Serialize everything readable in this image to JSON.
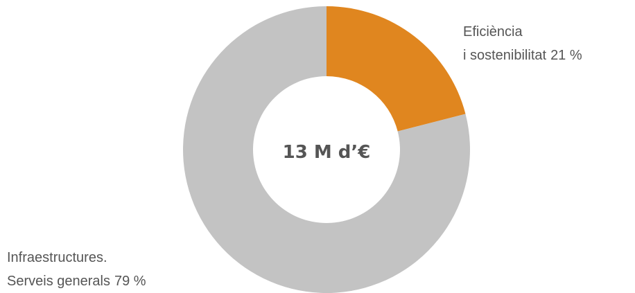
{
  "chart_data": {
    "type": "donut",
    "center_label": "13 M d’€",
    "categories": [
      [
        "Eficiència",
        "i sostenibilitat"
      ],
      [
        "Infraestructures.",
        "Serveis generals"
      ]
    ],
    "values": [
      21,
      79
    ],
    "value_labels": [
      "21 %",
      "79 %"
    ],
    "colors": [
      "#e0861f",
      "#c3c3c3"
    ]
  }
}
